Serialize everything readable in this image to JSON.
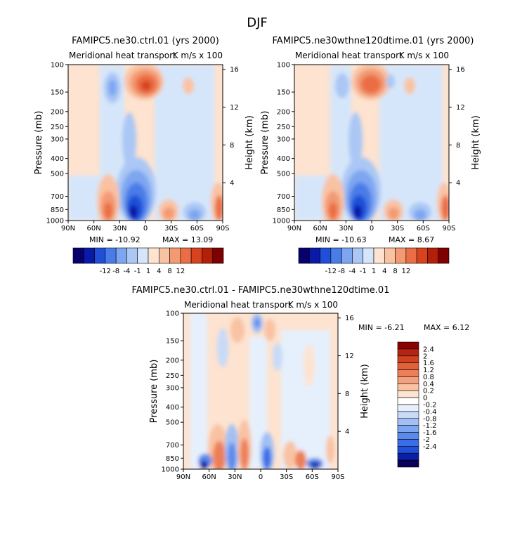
{
  "page": {
    "title": "DJF"
  },
  "colors": {
    "scale": [
      "#08006b",
      "#0a19a8",
      "#1f4fd8",
      "#4a7ce8",
      "#7ea6f0",
      "#aac7f5",
      "#d6e6fa",
      "#fde3d0",
      "#f9c2a3",
      "#f39a73",
      "#ea6d45",
      "#d8431f",
      "#b41f0a",
      "#7f0000"
    ],
    "diff_scale": [
      "#0a005c",
      "#0a1fa8",
      "#2050d8",
      "#3b6ee6",
      "#5b8aec",
      "#7ea6f0",
      "#a2c0f4",
      "#c8daf8",
      "#e6f0fc",
      "#ffffff",
      "#fde3d0",
      "#f9c2a3",
      "#f3a07e",
      "#ec7f57",
      "#e0603a",
      "#cf421f",
      "#b42412",
      "#8b0000"
    ]
  },
  "chart_data": [
    {
      "type": "heatmap",
      "title": "FAMIPC5.ne30.ctrl.01 (yrs 2000)",
      "subtitle_left": "Meridional heat transport",
      "subtitle_right": "K m/s x 100",
      "x_ticks": [
        "90N",
        "60N",
        "30N",
        "0",
        "30S",
        "60S",
        "90S"
      ],
      "y_ticks": [
        "100",
        "150",
        "200",
        "250",
        "300",
        "400",
        "500",
        "700",
        "850",
        "1000"
      ],
      "ylabel": "Pressure (mb)",
      "y2_ticks": [
        "16",
        "12",
        "8",
        "4"
      ],
      "y2label": "Height (km)",
      "min_label": "MIN = -10.92",
      "max_label": "MAX =  13.09",
      "colorbar_ticks": [
        "-12",
        "-8",
        "-4",
        "-1",
        "1",
        "4",
        "8",
        "12"
      ]
    },
    {
      "type": "heatmap",
      "title": "FAMIPC5.ne30wthne120dtime.01 (yrs 2000)",
      "subtitle_left": "Meridional heat transport",
      "subtitle_right": "K m/s x 100",
      "x_ticks": [
        "90N",
        "60N",
        "30N",
        "0",
        "30S",
        "60S",
        "90S"
      ],
      "y_ticks": [
        "100",
        "150",
        "200",
        "250",
        "300",
        "400",
        "500",
        "700",
        "850",
        "1000"
      ],
      "ylabel": "Pressure (mb)",
      "y2_ticks": [
        "16",
        "12",
        "8",
        "4"
      ],
      "y2label": "Height (km)",
      "min_label": "MIN = -10.63",
      "max_label": "MAX =   8.67",
      "colorbar_ticks": [
        "-12",
        "-8",
        "-4",
        "-1",
        "1",
        "4",
        "8",
        "12"
      ]
    },
    {
      "type": "heatmap",
      "title": "FAMIPC5.ne30.ctrl.01 - FAMIPC5.ne30wthne120dtime.01",
      "subtitle_left": "Meridional heat transport",
      "subtitle_right": "K m/s x 100",
      "x_ticks": [
        "90N",
        "60N",
        "30N",
        "0",
        "30S",
        "60S",
        "90S"
      ],
      "y_ticks": [
        "100",
        "150",
        "200",
        "250",
        "300",
        "400",
        "500",
        "700",
        "850",
        "1000"
      ],
      "ylabel": "Pressure (mb)",
      "y2_ticks": [
        "16",
        "12",
        "8",
        "4"
      ],
      "y2label": "Height (km)",
      "min_label": "MIN =  -6.21",
      "max_label": "MAX =   6.12",
      "colorbar_ticks": [
        "2.4",
        "2",
        "1.6",
        "1.2",
        "0.8",
        "0.4",
        "0.2",
        "0",
        "-0.2",
        "-0.4",
        "-0.8",
        "-1.2",
        "-1.6",
        "-2",
        "-2.4"
      ]
    }
  ]
}
